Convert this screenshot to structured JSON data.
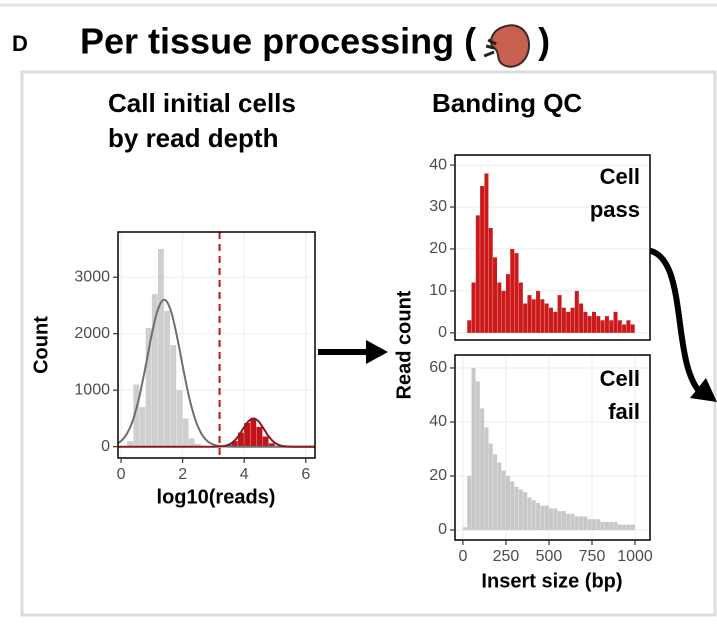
{
  "header": {
    "letter": "D",
    "title_parts": [
      "Per tissue processing (",
      ")"
    ]
  },
  "chart_data": [
    {
      "type": "histogram",
      "title_lines": [
        "Call initial cells",
        "by read depth"
      ],
      "xlabel": "log10(reads)",
      "ylabel": "Count",
      "bins": [
        0,
        0.2,
        0.4,
        0.6,
        0.8,
        1.0,
        1.2,
        1.4,
        1.6,
        1.8,
        2.0,
        2.2,
        2.4,
        2.6,
        2.8,
        3.0,
        3.2,
        3.4,
        3.6,
        3.8,
        4.0,
        4.2,
        4.4,
        4.6,
        4.8,
        5.0,
        5.2
      ],
      "counts": [
        0,
        100,
        1100,
        700,
        2100,
        2700,
        3500,
        2400,
        1800,
        1000,
        500,
        150,
        50,
        20,
        10,
        10,
        10,
        40,
        100,
        250,
        420,
        500,
        350,
        180,
        60,
        10
      ],
      "color": "#cfcfcf",
      "highlight_color": "#c0141a",
      "threshold": 3.2,
      "fits": [
        {
          "mean": 1.4,
          "sd": 0.55,
          "peak": 2600,
          "color": "#6e6e6e"
        },
        {
          "mean": 4.3,
          "sd": 0.35,
          "peak": 500,
          "color": "#8b1a1a"
        }
      ],
      "xlim": [
        -0.1,
        6.3
      ],
      "ylim": [
        -200,
        3800
      ],
      "xticks": [
        0,
        2,
        4,
        6
      ],
      "yticks": [
        0,
        1000,
        2000,
        3000
      ],
      "grid": true
    },
    {
      "type": "histogram",
      "title_lines": [
        "Banding QC"
      ],
      "ylabel": "Read count",
      "annotation_lines": [
        "Cell",
        "pass"
      ],
      "bins": [
        0,
        25,
        50,
        75,
        100,
        125,
        150,
        175,
        200,
        225,
        250,
        275,
        300,
        325,
        350,
        375,
        400,
        425,
        450,
        475,
        500,
        525,
        550,
        575,
        600,
        625,
        650,
        675,
        700,
        725,
        750,
        775,
        800,
        825,
        850,
        875,
        900,
        925,
        950,
        975,
        1000
      ],
      "counts": [
        0,
        3,
        12,
        28,
        35,
        38,
        25,
        18,
        12,
        10,
        14,
        20,
        19,
        12,
        7,
        9,
        8,
        10,
        8,
        7,
        6,
        5,
        9,
        6,
        5,
        6,
        10,
        7,
        5,
        4,
        5,
        4,
        3,
        4,
        3,
        5,
        3,
        2,
        3,
        2
      ],
      "color": "#cc1a1a",
      "xlim": [
        -46,
        1087
      ],
      "ylim": [
        -1.7,
        42.4
      ],
      "yticks": [
        0,
        10,
        20,
        30,
        40
      ],
      "grid": true
    },
    {
      "type": "histogram",
      "xlabel": "Insert size (bp)",
      "annotation_lines": [
        "Cell",
        "fail"
      ],
      "bins": [
        0,
        25,
        50,
        75,
        100,
        125,
        150,
        175,
        200,
        225,
        250,
        275,
        300,
        325,
        350,
        375,
        400,
        425,
        450,
        475,
        500,
        525,
        550,
        575,
        600,
        625,
        650,
        675,
        700,
        725,
        750,
        775,
        800,
        825,
        850,
        875,
        900,
        925,
        950,
        975,
        1000
      ],
      "counts": [
        1,
        20,
        60,
        55,
        45,
        38,
        32,
        28,
        25,
        22,
        20,
        18,
        16,
        15,
        14,
        12,
        11,
        10,
        9,
        9,
        8,
        8,
        7,
        7,
        6,
        6,
        5,
        5,
        5,
        4,
        4,
        4,
        3,
        3,
        3,
        3,
        2,
        2,
        2,
        2
      ],
      "color": "#c8c8c8",
      "xlim": [
        -46,
        1087
      ],
      "ylim": [
        -3.7,
        64.8
      ],
      "xticks": [
        0,
        250,
        500,
        750,
        1000
      ],
      "yticks": [
        0,
        20,
        40,
        60
      ],
      "grid": true
    }
  ]
}
